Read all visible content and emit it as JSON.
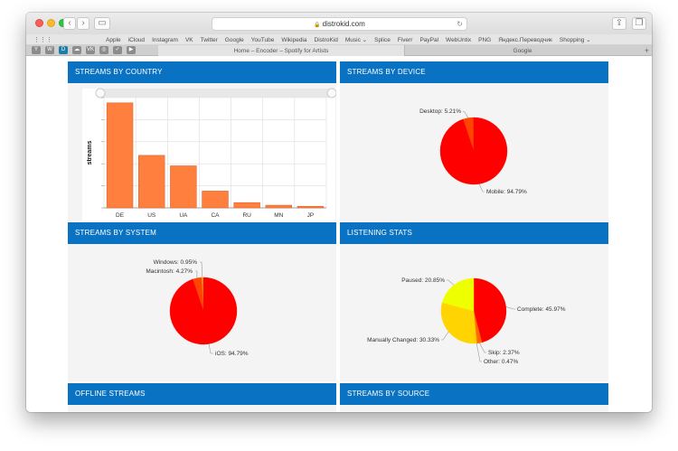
{
  "browser": {
    "address": "distrokid.com",
    "bookmarks": [
      "Apple",
      "iCloud",
      "Instagram",
      "VK",
      "Twitter",
      "Google",
      "YouTube",
      "Wikipedia",
      "DistroKid",
      "Music ⌄",
      "Splice",
      "Fiverr",
      "PayPal",
      "WebUntix",
      "PNG",
      "Яндекс.Переводчик",
      "Shopping ⌄"
    ],
    "pinned_tabs": [
      "Y",
      "W",
      "D",
      "☁",
      "VK",
      "◎",
      "✓",
      "▶"
    ],
    "tabs": [
      {
        "label": "Home – Encoder – Spotify for Artists",
        "active": true
      },
      {
        "label": "Google",
        "active": false
      }
    ]
  },
  "panels": {
    "country": {
      "title": "STREAMS BY COUNTRY"
    },
    "device": {
      "title": "STREAMS BY DEVICE"
    },
    "system": {
      "title": "STREAMS BY SYSTEM"
    },
    "listening": {
      "title": "LISTENING STATS"
    },
    "offline": {
      "title": "OFFLINE STREAMS"
    },
    "source": {
      "title": "STREAMS BY SOURCE"
    }
  },
  "chart_data": [
    {
      "type": "bar",
      "ylabel": "streams",
      "categories": [
        "DE",
        "US",
        "UA",
        "CA",
        "RU",
        "MN",
        "JP"
      ],
      "values": [
        100,
        50,
        40,
        16,
        5,
        2.5,
        1.5
      ],
      "ylim": [
        0,
        105
      ],
      "grid": true,
      "color": "#ff7f3f"
    },
    {
      "type": "pie",
      "labels": [
        "Desktop: 5.21%",
        "Mobile: 94.79%"
      ],
      "values": [
        5.21,
        94.79
      ],
      "colors": [
        "#ff4500",
        "#ff0000"
      ]
    },
    {
      "type": "pie",
      "labels": [
        "Windows: 0.95%",
        "Macintosh: 4.27%",
        "iOS: 94.79%"
      ],
      "values": [
        0.95,
        4.27,
        94.79
      ],
      "colors": [
        "#ffa500",
        "#ff4500",
        "#ff0000"
      ]
    },
    {
      "type": "pie",
      "labels": [
        "Complete: 45.97%",
        "Skip: 2.37%",
        "Other: 0.47%",
        "Manually Changed: 30.33%",
        "Paused: 20.85%"
      ],
      "values": [
        45.97,
        2.37,
        0.47,
        30.33,
        20.85
      ],
      "colors": [
        "#ff0000",
        "#ff6a00",
        "#ffa500",
        "#ffd400",
        "#eeff00"
      ]
    }
  ]
}
